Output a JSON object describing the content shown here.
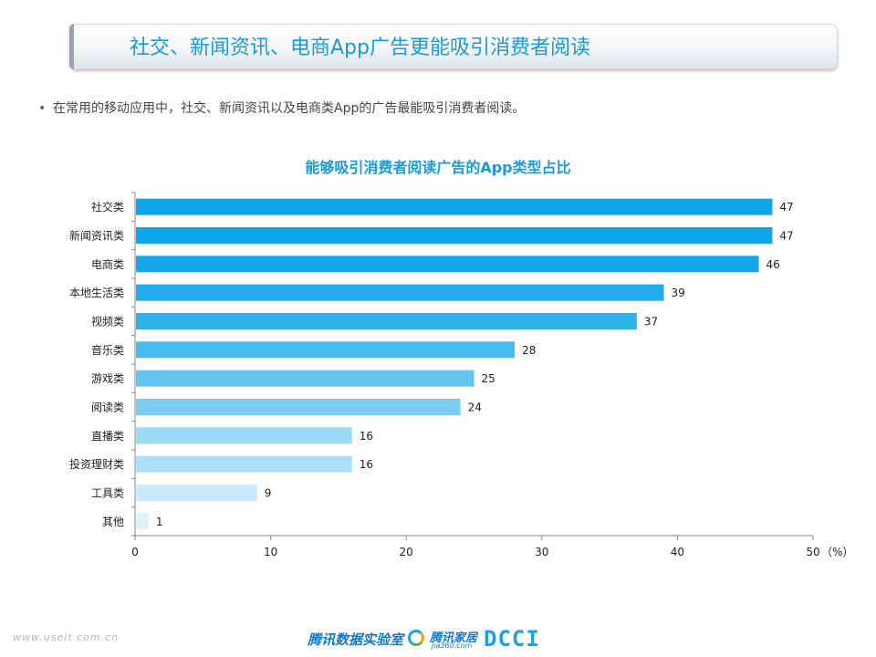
{
  "header": {
    "title": "社交、新闻资讯、电商App广告更能吸引消费者阅读"
  },
  "bullet": {
    "symbol": "•",
    "text": "在常用的移动应用中，社交、新闻资讯以及电商类App的广告最能吸引消费者阅读。"
  },
  "footer": {
    "watermark": "www.useit.com.cn",
    "brand": "腾讯数据实验室",
    "logo2_name": "腾讯家居",
    "logo2_sub": "jia360.com",
    "logo3": "DCCI"
  },
  "chart_data": {
    "type": "bar",
    "orientation": "horizontal",
    "title": "能够吸引消费者阅读广告的App类型占比",
    "xlabel": "",
    "ylabel": "",
    "unit": "（%）",
    "categories": [
      "社交类",
      "新闻资讯类",
      "电商类",
      "本地生活类",
      "视频类",
      "音乐类",
      "游戏类",
      "阅读类",
      "直播类",
      "投资理财类",
      "工具类",
      "其他"
    ],
    "values": [
      47,
      47,
      46,
      39,
      37,
      28,
      25,
      24,
      16,
      16,
      9,
      1
    ],
    "xlim": [
      0,
      50
    ],
    "xticks": [
      0,
      10,
      20,
      30,
      40,
      50
    ],
    "grid": false,
    "bar_colors": [
      "#0ea5e9",
      "#0ea5e9",
      "#12a7ea",
      "#22aceb",
      "#2fb2ec",
      "#47bcef",
      "#63c6f1",
      "#7ccff3",
      "#99dbf6",
      "#aadff7",
      "#c8eafa",
      "#dff2fc"
    ],
    "label_color": "#222222",
    "axis_color": "#888888"
  }
}
